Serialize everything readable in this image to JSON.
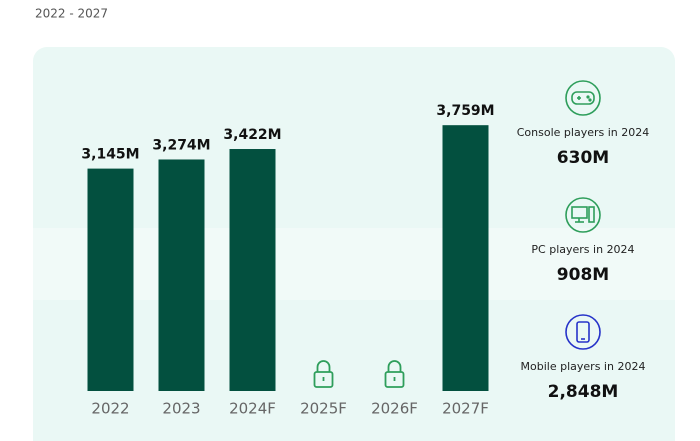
{
  "chart_data": {
    "type": "bar",
    "subtitle": "2022 - 2027",
    "categories": [
      "2022",
      "2023",
      "2024F",
      "2025F",
      "2026F",
      "2027F"
    ],
    "values": [
      3145,
      3274,
      3422,
      null,
      null,
      3759
    ],
    "value_labels": [
      "3,145M",
      "3,274M",
      "3,422M",
      null,
      null,
      "3,759M"
    ],
    "color": "#03503f",
    "ylim": [
      0,
      4200
    ],
    "stats": [
      {
        "label": "Console players in 2024",
        "value": "630M"
      },
      {
        "label": "PC players in 2024",
        "value": "908M"
      },
      {
        "label": "Mobile players in 2024",
        "value": "2,848M"
      }
    ]
  }
}
